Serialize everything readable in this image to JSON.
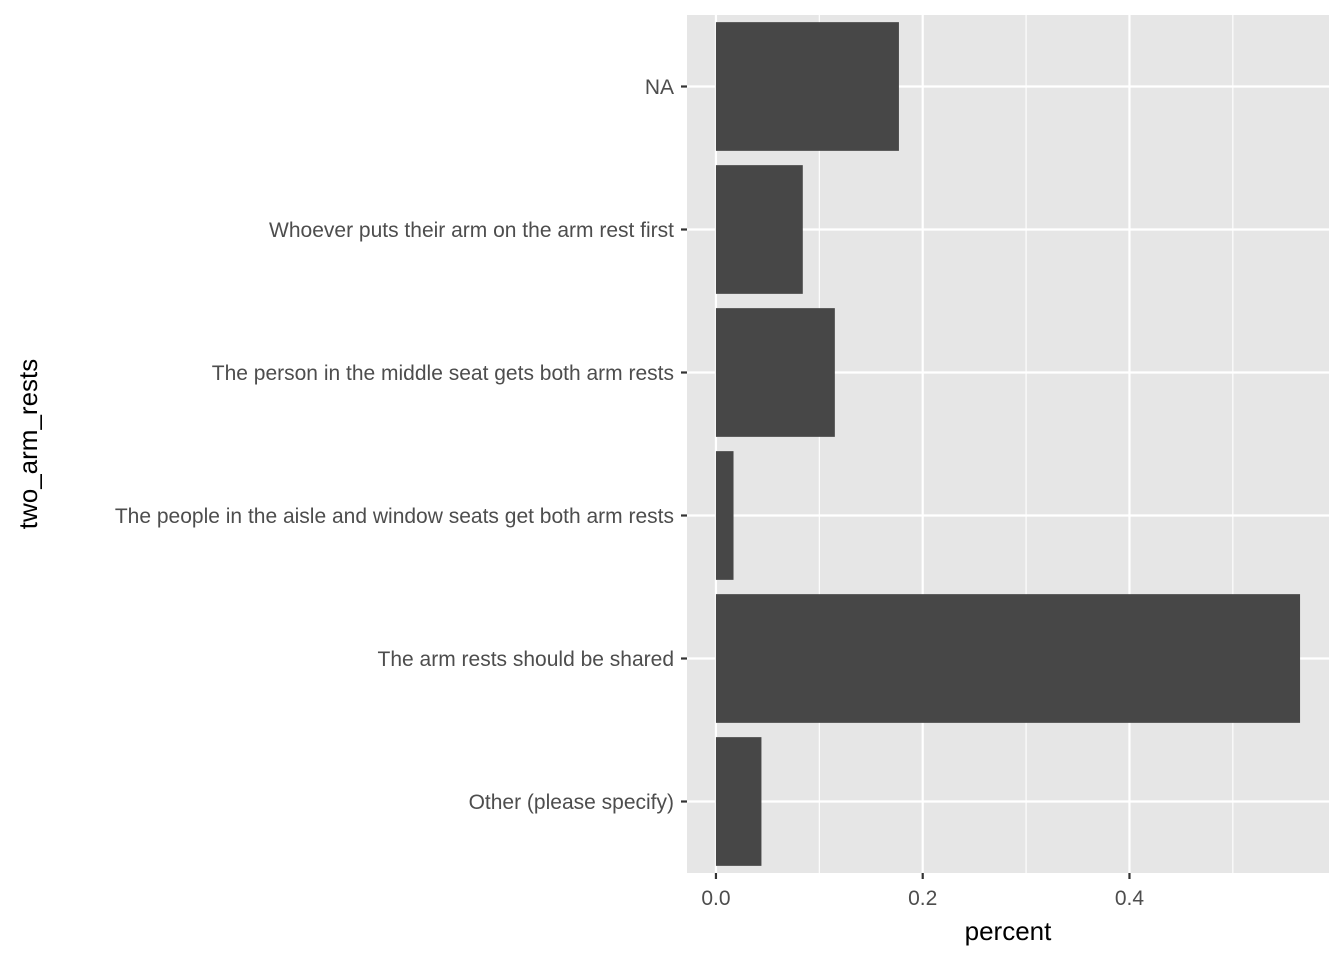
{
  "chart_data": {
    "type": "bar",
    "orientation": "horizontal",
    "categories": [
      "Other (please specify)",
      "The arm rests should be shared",
      "The people in the aisle and window seats get both arm rests",
      "The person in the middle seat gets both arm rests",
      "Whoever puts their arm on the arm rest first",
      "NA"
    ],
    "values": [
      0.044,
      0.565,
      0.017,
      0.115,
      0.084,
      0.177
    ],
    "xlabel": "percent",
    "ylabel": "two_arm_rests",
    "xlim": [
      -0.028,
      0.593
    ],
    "x_ticks": [
      0.0,
      0.2,
      0.4
    ],
    "x_tick_labels": [
      "0.0",
      "0.2",
      "0.4"
    ],
    "grid": true,
    "colors": {
      "bar": "#474747",
      "panel_background": "#e6e6e6",
      "grid": "#ffffff"
    }
  }
}
